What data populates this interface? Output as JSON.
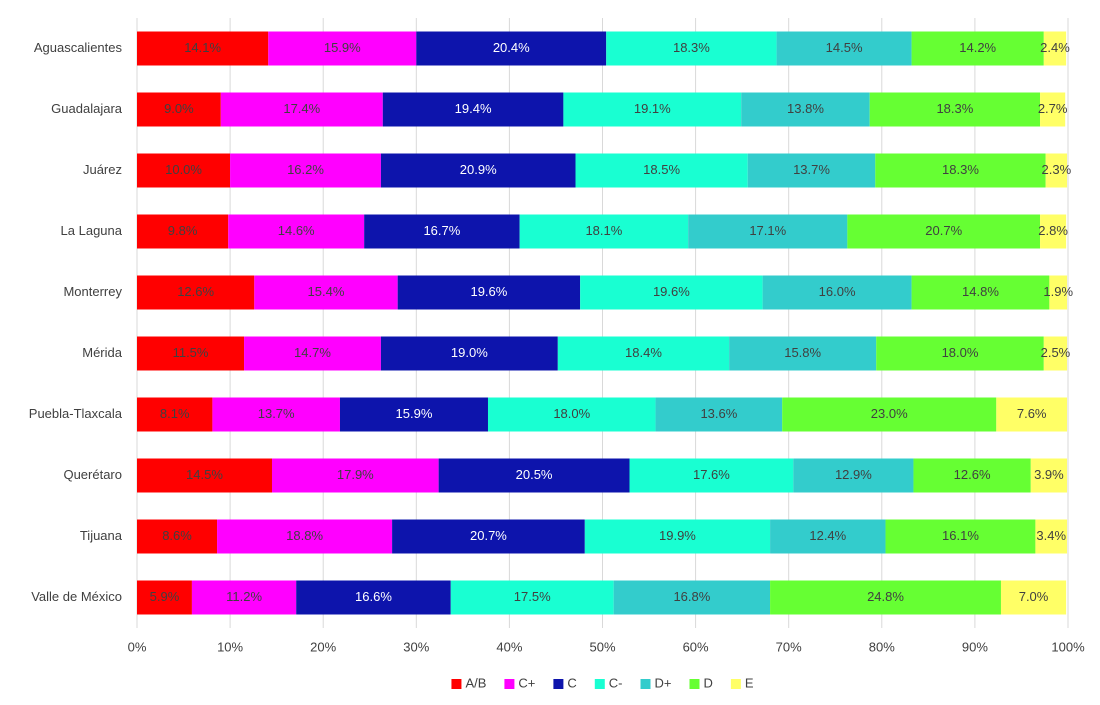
{
  "chart_data": {
    "type": "stacked-bar-horizontal",
    "categories": [
      "Aguascalientes",
      "Guadalajara",
      "Juárez",
      "La Laguna",
      "Monterrey",
      "Mérida",
      "Puebla-Tlaxcala",
      "Querétaro",
      "Tijuana",
      "Valle de México"
    ],
    "series": [
      {
        "name": "A/B",
        "color": "#ff0000",
        "label_color": "#404040",
        "values": [
          14.1,
          9.0,
          10.0,
          9.8,
          12.6,
          11.5,
          8.1,
          14.5,
          8.6,
          5.9
        ],
        "value_labels": [
          "14.1%",
          "9.0%",
          "10.0%",
          "9.8%",
          "12.6%",
          "11.5%",
          "8.1%",
          "14.5%",
          "8.6%",
          "5.9%"
        ]
      },
      {
        "name": "C+",
        "color": "#ff00ff",
        "label_color": "#404040",
        "values": [
          15.9,
          17.4,
          16.2,
          14.6,
          15.4,
          14.7,
          13.7,
          17.9,
          18.8,
          11.2
        ],
        "value_labels": [
          "15.9%",
          "17.4%",
          "16.2%",
          "14.6%",
          "15.4%",
          "14.7%",
          "13.7%",
          "17.9%",
          "18.8%",
          "11.2%"
        ]
      },
      {
        "name": "C",
        "color": "#0d14ac",
        "label_color": "#ffffff",
        "values": [
          20.4,
          19.4,
          20.9,
          16.7,
          19.6,
          19.0,
          15.9,
          20.5,
          20.7,
          16.6
        ],
        "value_labels": [
          "20.4%",
          "19.4%",
          "20.9%",
          "16.7%",
          "19.6%",
          "19.0%",
          "15.9%",
          "20.5%",
          "20.7%",
          "16.6%"
        ]
      },
      {
        "name": "C-",
        "color": "#19ffd2",
        "label_color": "#404040",
        "values": [
          18.3,
          19.1,
          18.5,
          18.1,
          19.6,
          18.4,
          18.0,
          17.6,
          19.9,
          17.5
        ],
        "value_labels": [
          "18.3%",
          "19.1%",
          "18.5%",
          "18.1%",
          "19.6%",
          "18.4%",
          "18.0%",
          "17.6%",
          "19.9%",
          "17.5%"
        ]
      },
      {
        "name": "D+",
        "color": "#33cccc",
        "label_color": "#404040",
        "values": [
          14.5,
          13.8,
          13.7,
          17.1,
          16.0,
          15.8,
          13.6,
          12.9,
          12.4,
          16.8
        ],
        "value_labels": [
          "14.5%",
          "13.8%",
          "13.7%",
          "17.1%",
          "16.0%",
          "15.8%",
          "13.6%",
          "12.9%",
          "12.4%",
          "16.8%"
        ]
      },
      {
        "name": "D",
        "color": "#66ff33",
        "label_color": "#404040",
        "values": [
          14.2,
          18.3,
          18.3,
          20.7,
          14.8,
          18.0,
          23.0,
          12.6,
          16.1,
          24.8
        ],
        "value_labels": [
          "14.2%",
          "18.3%",
          "18.3%",
          "20.7%",
          "14.8%",
          "18.0%",
          "23.0%",
          "12.6%",
          "16.1%",
          "24.8%"
        ]
      },
      {
        "name": "E",
        "color": "#ffff66",
        "label_color": "#404040",
        "values": [
          2.4,
          2.7,
          2.3,
          2.8,
          1.9,
          2.5,
          7.6,
          3.9,
          3.4,
          7.0
        ],
        "value_labels": [
          "2.4%",
          "2.7%",
          "2.3%",
          "2.8%",
          "1.9%",
          "2.5%",
          "7.6%",
          "3.9%",
          "3.4%",
          "7.0%"
        ]
      }
    ],
    "xlim": [
      0,
      100
    ],
    "xticks": [
      {
        "value": 0,
        "label": "0%"
      },
      {
        "value": 10,
        "label": "10%"
      },
      {
        "value": 20,
        "label": "20%"
      },
      {
        "value": 30,
        "label": "30%"
      },
      {
        "value": 40,
        "label": "40%"
      },
      {
        "value": 50,
        "label": "50%"
      },
      {
        "value": 60,
        "label": "60%"
      },
      {
        "value": 70,
        "label": "70%"
      },
      {
        "value": 80,
        "label": "80%"
      },
      {
        "value": 90,
        "label": "90%"
      },
      {
        "value": 100,
        "label": "100%"
      }
    ],
    "grid": true,
    "legend": "bottom"
  }
}
